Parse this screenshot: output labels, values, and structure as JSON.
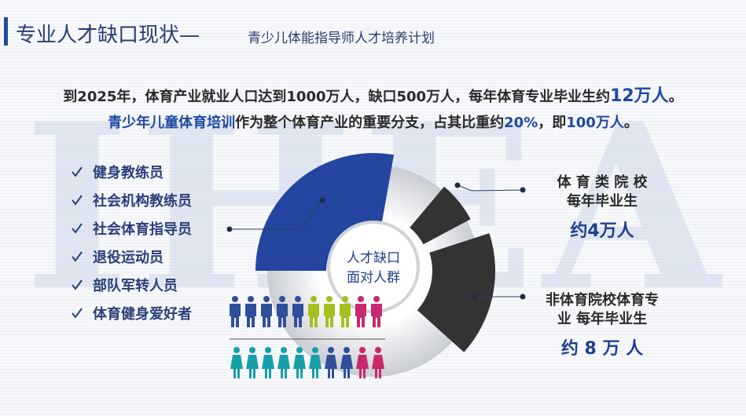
{
  "header": {
    "title": "专业人才缺口现状—",
    "subtitle": "青少儿体能指导师人才培养计划"
  },
  "watermark": "IHEA",
  "intro": {
    "line1": [
      {
        "text": "到2025年，体育产业就业人口达到1000万人，缺口500万人，每年体育专业毕业生约",
        "highlight": false
      },
      {
        "text": "12万人",
        "highlight": true
      },
      {
        "text": "。",
        "highlight": false
      }
    ],
    "line2": [
      {
        "text": "青少年儿童体育培训",
        "highlight": true
      },
      {
        "text": "作为整个体育产业的重要分支，占其比重约",
        "highlight": false
      },
      {
        "text": "20%",
        "highlight": true
      },
      {
        "text": "，即",
        "highlight": false
      },
      {
        "text": "100万人",
        "highlight": true
      },
      {
        "text": "。",
        "highlight": false
      }
    ]
  },
  "audience": {
    "items": [
      "健身教练员",
      "社会机构教练员",
      "社会体育指导员",
      "退役运动员",
      "部队军转人员",
      "体育健身爱好者"
    ]
  },
  "center": {
    "lines": [
      "人才缺口",
      "面对人群"
    ]
  },
  "callouts": [
    {
      "lines": [
        "体 育 类 院 校",
        "每年毕业生"
      ],
      "amount": "约4万人"
    },
    {
      "lines": [
        "非体育院校体育专",
        "业 每年毕业生"
      ],
      "amount": "约 8 万 人"
    }
  ]
}
